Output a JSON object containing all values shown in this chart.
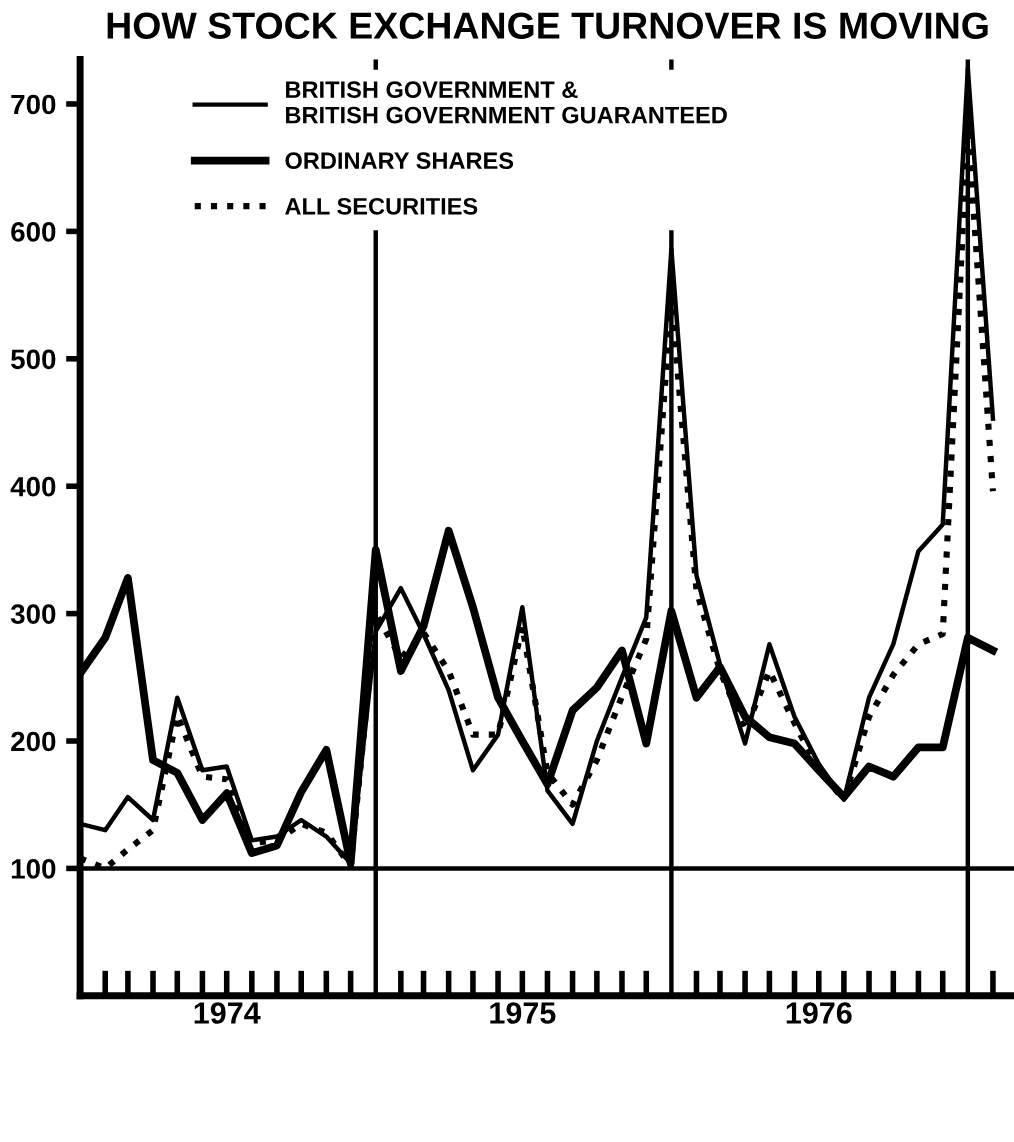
{
  "chart_data": {
    "type": "line",
    "title": "HOW STOCK EXCHANGE TURNOVER IS MOVING",
    "x": [
      "1974-01",
      "1974-02",
      "1974-03",
      "1974-04",
      "1974-05",
      "1974-06",
      "1974-07",
      "1974-08",
      "1974-09",
      "1974-10",
      "1974-11",
      "1974-12",
      "1975-01",
      "1975-02",
      "1975-03",
      "1975-04",
      "1975-05",
      "1975-06",
      "1975-07",
      "1975-08",
      "1975-09",
      "1975-10",
      "1975-11",
      "1975-12",
      "1976-01",
      "1976-02",
      "1976-03",
      "1976-04",
      "1976-05",
      "1976-06",
      "1976-07",
      "1976-08",
      "1976-09",
      "1976-10",
      "1976-11",
      "1976-12",
      "1977-01",
      "1977-02"
    ],
    "series": [
      {
        "name": "BRITISH GOVERNMENT &\nBRITISH GOVERNMENT GUARANTEED",
        "color": "#000000",
        "line_style": "solid",
        "values": [
          135,
          130,
          156,
          138,
          234,
          177,
          180,
          122,
          125,
          138,
          125,
          104,
          286,
          320,
          284,
          240,
          177,
          205,
          305,
          161,
          135,
          200,
          250,
          297,
          586,
          330,
          260,
          198,
          276,
          219,
          182,
          154,
          234,
          276,
          349,
          370,
          728,
          453
        ]
      },
      {
        "name": "ORDINARY SHARES",
        "color": "#000000",
        "line_style": "solid",
        "values": [
          253,
          281,
          328,
          185,
          175,
          138,
          159,
          112,
          118,
          160,
          193,
          104,
          350,
          255,
          290,
          365,
          305,
          234,
          200,
          166,
          224,
          242,
          271,
          198,
          302,
          234,
          258,
          219,
          203,
          198,
          177,
          156,
          180,
          172,
          195,
          195,
          281,
          271
        ]
      },
      {
        "name": "ALL SECURITIES",
        "color": "#000000",
        "line_style": "dotted",
        "values": [
          108,
          100,
          115,
          130,
          220,
          172,
          170,
          120,
          122,
          135,
          128,
          102,
          300,
          265,
          285,
          255,
          205,
          205,
          290,
          175,
          150,
          185,
          235,
          280,
          547,
          318,
          255,
          208,
          255,
          214,
          177,
          154,
          219,
          252,
          276,
          284,
          682,
          396
        ]
      }
    ],
    "xlim": [
      "1974-01",
      "1977-02-27"
    ],
    "ylim": [
      0,
      735
    ],
    "yticks": [
      100,
      200,
      300,
      400,
      500,
      600,
      700
    ],
    "xticks": [
      {
        "value": "1974-02",
        "label": null
      },
      {
        "value": "1974-03",
        "label": null
      },
      {
        "value": "1974-04",
        "label": null
      },
      {
        "value": "1974-05",
        "label": null
      },
      {
        "value": "1974-06",
        "label": null
      },
      {
        "value": "1974-07",
        "label": "1974"
      },
      {
        "value": "1974-08",
        "label": null
      },
      {
        "value": "1974-09",
        "label": null
      },
      {
        "value": "1974-10",
        "label": null
      },
      {
        "value": "1974-11",
        "label": null
      },
      {
        "value": "1974-12",
        "label": null
      },
      {
        "value": "1975-02",
        "label": null
      },
      {
        "value": "1975-03",
        "label": null
      },
      {
        "value": "1975-04",
        "label": null
      },
      {
        "value": "1975-05",
        "label": null
      },
      {
        "value": "1975-06",
        "label": null
      },
      {
        "value": "1975-07",
        "label": "1975"
      },
      {
        "value": "1975-08",
        "label": null
      },
      {
        "value": "1975-09",
        "label": null
      },
      {
        "value": "1975-10",
        "label": null
      },
      {
        "value": "1975-11",
        "label": null
      },
      {
        "value": "1975-12",
        "label": null
      },
      {
        "value": "1976-02",
        "label": null
      },
      {
        "value": "1976-03",
        "label": null
      },
      {
        "value": "1976-04",
        "label": null
      },
      {
        "value": "1976-05",
        "label": null
      },
      {
        "value": "1976-06",
        "label": null
      },
      {
        "value": "1976-07",
        "label": "1976"
      },
      {
        "value": "1976-08",
        "label": null
      },
      {
        "value": "1976-09",
        "label": null
      },
      {
        "value": "1976-10",
        "label": null
      },
      {
        "value": "1976-11",
        "label": null
      },
      {
        "value": "1976-12",
        "label": null
      },
      {
        "value": "1977-02",
        "label": null
      }
    ],
    "ref_lines": [
      {
        "axis": "y",
        "value": 100,
        "label": null
      },
      {
        "axis": "x",
        "value": "1975-01",
        "label": null
      },
      {
        "axis": "x",
        "value": "1976-01",
        "label": null
      },
      {
        "axis": "x",
        "value": "1977-01",
        "label": null
      }
    ],
    "grid": false,
    "legend": "top left",
    "marker": "none"
  }
}
